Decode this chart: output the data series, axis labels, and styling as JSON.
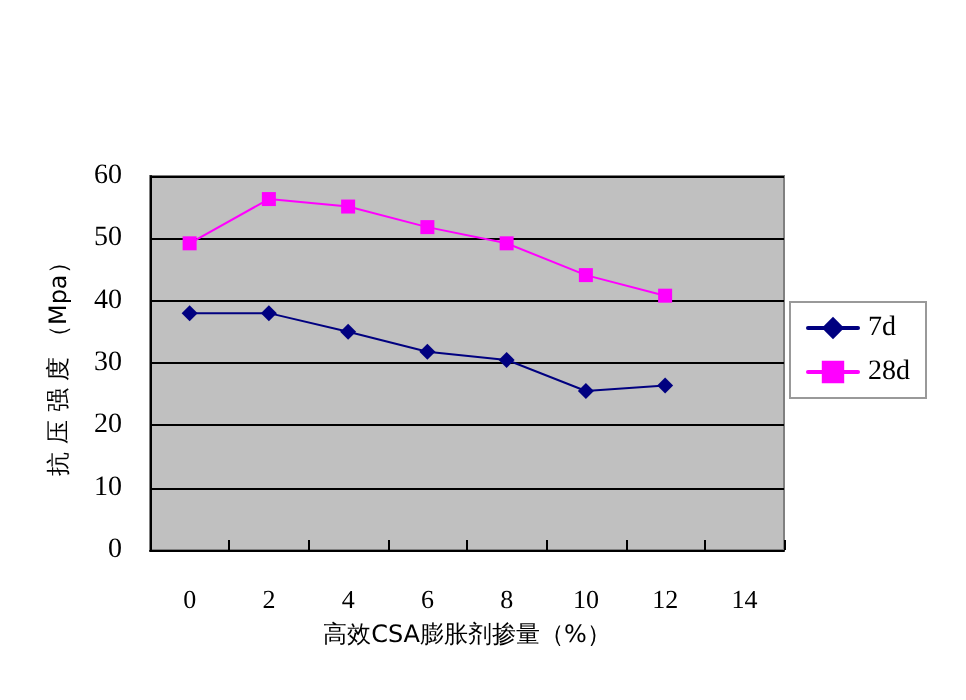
{
  "chart_data": {
    "type": "line",
    "xlabel": "高效CSA膨胀剂掺量（%）",
    "ylabel": "抗 压 强 度 （Mpa）",
    "categories": [
      "0",
      "2",
      "4",
      "6",
      "8",
      "10",
      "12",
      "14"
    ],
    "series": [
      {
        "name": "7d",
        "color": "#000080",
        "marker": "diamond",
        "values": [
          38,
          38,
          35,
          31.8,
          30.5,
          25.5,
          26.4,
          null
        ]
      },
      {
        "name": "28d",
        "color": "#ff00ff",
        "marker": "square",
        "values": [
          49.2,
          56.3,
          55.1,
          51.8,
          49.2,
          44.1,
          40.8,
          null
        ]
      }
    ],
    "ylim": [
      0,
      60
    ],
    "yticks": [
      0,
      10,
      20,
      30,
      40,
      50,
      60
    ],
    "grid": "y",
    "legend": "right",
    "line_style": "solid"
  }
}
